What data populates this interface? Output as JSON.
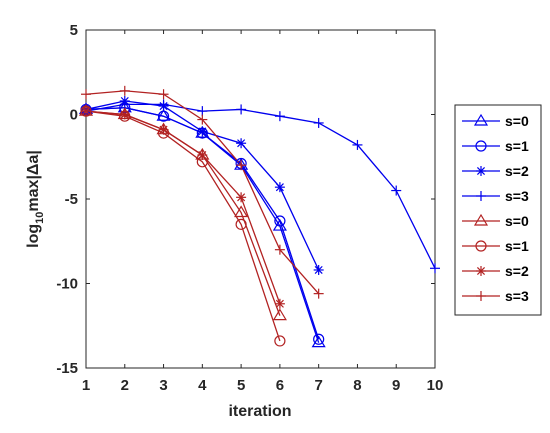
{
  "chart_data": {
    "type": "line",
    "xlabel": "iteration",
    "ylabel_base": "log",
    "ylabel_sub": "10",
    "ylabel_rest": "max|Δa|",
    "xlim": [
      1,
      10
    ],
    "ylim": [
      -15,
      5
    ],
    "xticks": [
      1,
      2,
      3,
      4,
      5,
      6,
      7,
      8,
      9,
      10
    ],
    "yticks": [
      -15,
      -10,
      -5,
      0,
      5
    ],
    "grid": false,
    "legend_position": "right",
    "colors": {
      "blue": "#0000ee",
      "red": "#b22222"
    },
    "series": [
      {
        "name": "s=0",
        "color": "blue",
        "marker": "triangle",
        "x": [
          1,
          2,
          3,
          4,
          5,
          6,
          7
        ],
        "y": [
          0.3,
          0.4,
          -0.1,
          -1.1,
          -3.0,
          -6.6,
          -13.5
        ]
      },
      {
        "name": "s=1",
        "color": "blue",
        "marker": "circle",
        "x": [
          1,
          2,
          3,
          4,
          5,
          6,
          7
        ],
        "y": [
          0.3,
          0.4,
          -0.1,
          -1.1,
          -2.9,
          -6.3,
          -13.3
        ]
      },
      {
        "name": "s=2",
        "color": "blue",
        "marker": "star",
        "x": [
          1,
          2,
          3,
          4,
          5,
          6,
          7
        ],
        "y": [
          0.3,
          0.8,
          0.5,
          -1.0,
          -1.7,
          -4.3,
          -9.2
        ]
      },
      {
        "name": "s=3",
        "color": "blue",
        "marker": "plus",
        "x": [
          1,
          2,
          3,
          4,
          5,
          6,
          7,
          8,
          9,
          10
        ],
        "y": [
          0.2,
          0.6,
          0.6,
          0.2,
          0.3,
          -0.1,
          -0.5,
          -1.8,
          -4.5,
          -9.1
        ]
      },
      {
        "name": "s=0",
        "color": "red",
        "marker": "triangle",
        "x": [
          1,
          2,
          3,
          4,
          5,
          6
        ],
        "y": [
          0.2,
          0.0,
          -0.9,
          -2.4,
          -5.8,
          -11.9
        ]
      },
      {
        "name": "s=1",
        "color": "red",
        "marker": "circle",
        "x": [
          1,
          2,
          3,
          4,
          5,
          6
        ],
        "y": [
          0.2,
          -0.1,
          -1.1,
          -2.8,
          -6.5,
          -13.4
        ]
      },
      {
        "name": "s=2",
        "color": "red",
        "marker": "star",
        "x": [
          1,
          2,
          3,
          4,
          5,
          6
        ],
        "y": [
          0.2,
          0.0,
          -0.9,
          -2.4,
          -4.9,
          -11.2
        ]
      },
      {
        "name": "s=3",
        "color": "red",
        "marker": "plus",
        "x": [
          1,
          2,
          3,
          4,
          5,
          6,
          7
        ],
        "y": [
          1.2,
          1.4,
          1.2,
          -0.3,
          -3.0,
          -8.0,
          -10.6
        ]
      }
    ]
  }
}
